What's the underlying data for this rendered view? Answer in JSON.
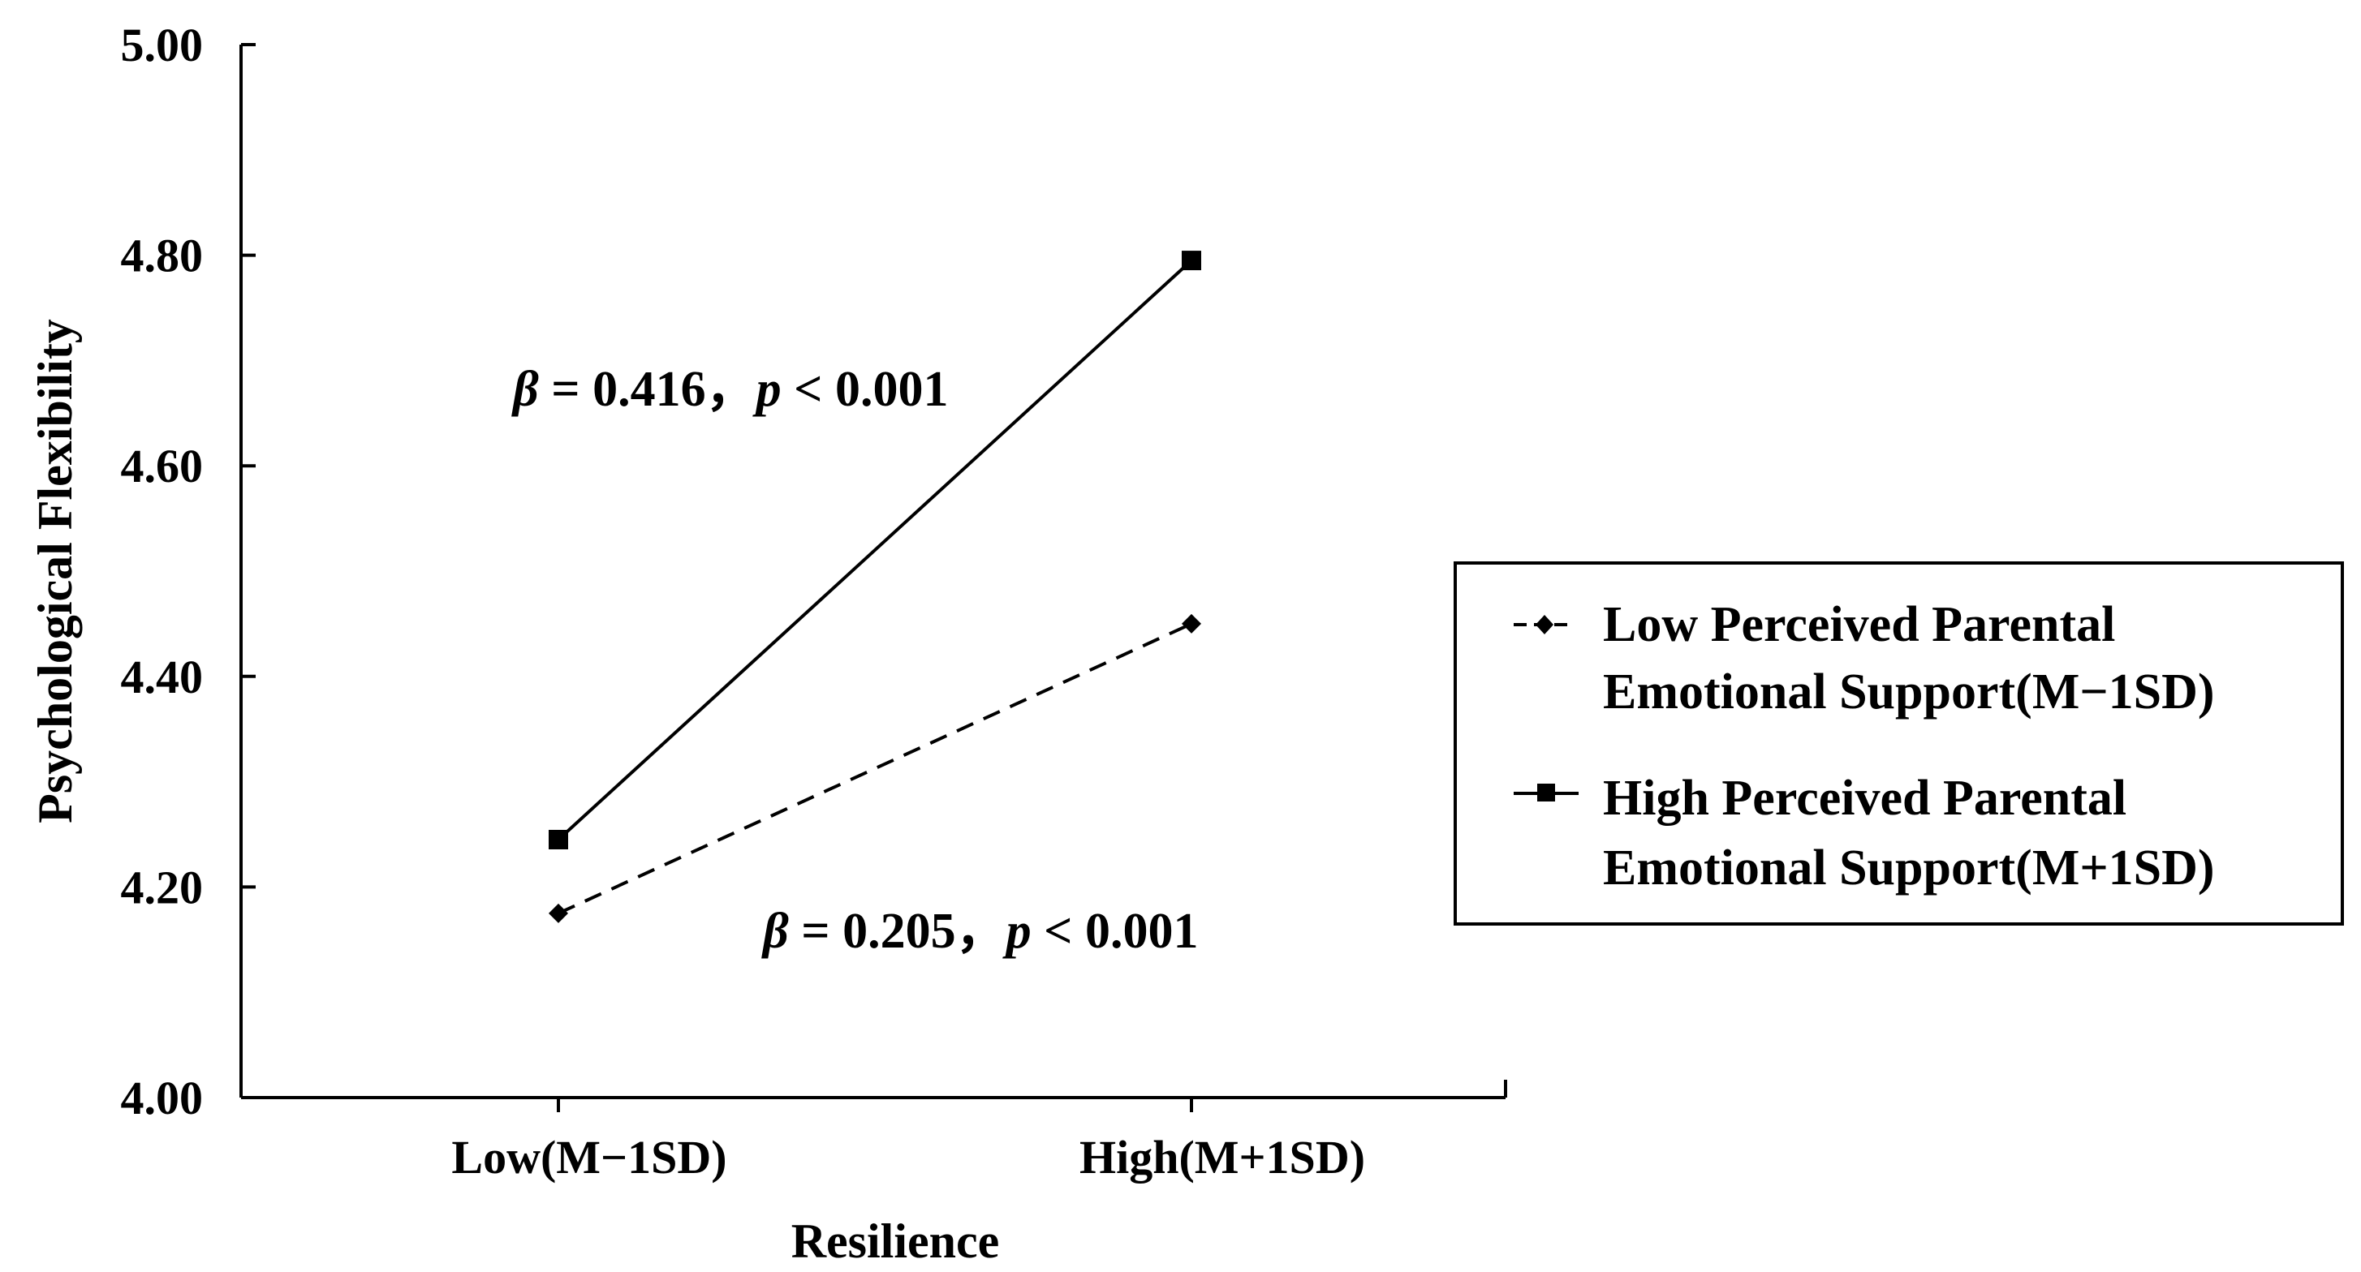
{
  "chart_data": {
    "type": "line",
    "categories": [
      "Low(M−1SD)",
      "High(M+1SD)"
    ],
    "series": [
      {
        "name": "Low Perceived Parental Emotional Support(M−1SD)",
        "legend_lines": [
          "Low Perceived Parental",
          "Emotional Support(M−1SD)"
        ],
        "values": [
          4.175,
          4.45
        ],
        "line_style": "dashed",
        "marker": "diamond",
        "color": "#000000"
      },
      {
        "name": "High Perceived Parental Emotional Support(M+1SD)",
        "legend_lines": [
          "High Perceived Parental",
          "Emotional Support(M+1SD)"
        ],
        "values": [
          4.245,
          4.795
        ],
        "line_style": "solid",
        "marker": "square",
        "color": "#000000"
      }
    ],
    "xlabel": "Resilience",
    "ylabel": "Psychological Flexibility",
    "ylim": [
      4.0,
      5.0
    ],
    "yticks": [
      "4.00",
      "4.20",
      "4.40",
      "4.60",
      "4.80",
      "5.00"
    ],
    "legend_placement": "right",
    "grid": false,
    "annotations": [
      {
        "beta_symbol": "β",
        "beta_text": " = 0.416，",
        "p_symbol": "p",
        "p_text": " < 0.001"
      },
      {
        "beta_symbol": "β",
        "beta_text": " = 0.205，",
        "p_symbol": "p",
        "p_text": " < 0.001"
      }
    ]
  }
}
